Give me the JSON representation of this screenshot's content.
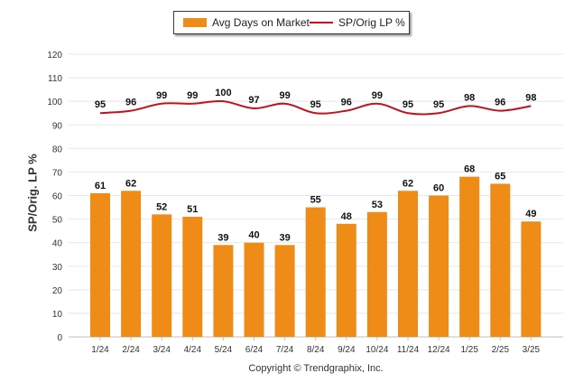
{
  "chart_data": {
    "type": "bar",
    "categories": [
      "1/24",
      "2/24",
      "3/24",
      "4/24",
      "5/24",
      "6/24",
      "7/24",
      "8/24",
      "9/24",
      "10/24",
      "11/24",
      "12/24",
      "1/25",
      "2/25",
      "3/25"
    ],
    "series": [
      {
        "name": "Avg Days on Market",
        "type": "bar",
        "color": "#ef8c18",
        "values": [
          61,
          62,
          52,
          51,
          39,
          40,
          39,
          55,
          48,
          53,
          62,
          60,
          68,
          65,
          49
        ]
      },
      {
        "name": "SP/Orig LP %",
        "type": "line",
        "color": "#c0141c",
        "values": [
          95,
          96,
          99,
          99,
          100,
          97,
          99,
          95,
          96,
          99,
          95,
          95,
          98,
          96,
          98
        ]
      }
    ],
    "ylabel": "SP/Orig. LP %",
    "ylim": [
      0,
      120
    ],
    "yticks": [
      0,
      10,
      20,
      30,
      40,
      50,
      60,
      70,
      80,
      90,
      100,
      110,
      120
    ],
    "grid": true,
    "legend_position": "top-center"
  },
  "legend": {
    "bar_label": "Avg Days on Market",
    "line_label": "SP/Orig LP %"
  },
  "credit": "Copyright © Trendgraphix, Inc."
}
